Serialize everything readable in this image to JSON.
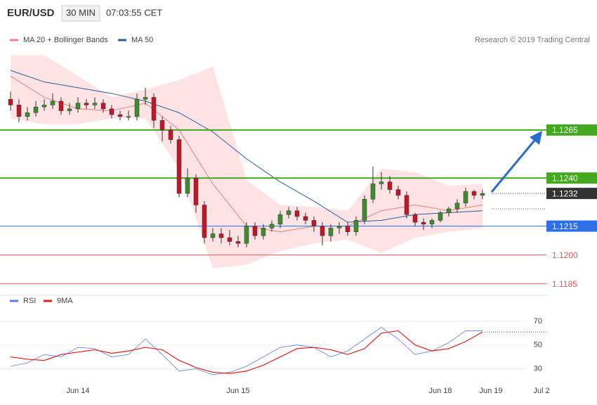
{
  "chart_data": [
    {
      "type": "candlestick",
      "title": "EUR/USD",
      "timeframe": "30 MIN",
      "time": "07:03:55 CET",
      "credit": "Research © 2019 Trading Central",
      "categories": [
        null,
        null,
        null,
        null,
        null,
        null,
        null,
        null,
        "Jun 14",
        null,
        null,
        null,
        null,
        null,
        null,
        null,
        null,
        null,
        null,
        null,
        null,
        null,
        null,
        null,
        null,
        null,
        null,
        "Jun 15",
        null,
        null,
        null,
        null,
        null,
        null,
        null,
        null,
        null,
        null,
        null,
        null,
        null,
        null,
        null,
        null,
        null,
        null,
        null,
        null,
        null,
        null,
        null,
        "Jun 18",
        null,
        null,
        null,
        null,
        null,
        "Jun 19",
        null,
        null,
        null,
        null,
        null,
        "Jul 2"
      ],
      "open": [
        1.1281,
        1.1278,
        1.1272,
        1.1274,
        1.1277,
        1.1278,
        1.128,
        1.1275,
        1.1276,
        1.1279,
        1.1278,
        1.1279,
        1.1276,
        1.1273,
        1.1272,
        1.1272,
        1.1281,
        1.1282,
        1.127,
        1.1265,
        1.126,
        1.1232,
        1.124,
        1.1226,
        1.1209,
        1.1211,
        1.1209,
        1.1207,
        1.1206,
        1.1215,
        1.121,
        1.1214,
        1.1216,
        1.1221,
        1.1223,
        1.122,
        1.1218,
        1.1215,
        1.121,
        1.1214,
        1.1215,
        1.1212,
        1.1218,
        1.1229,
        1.1237,
        1.1238,
        1.1234,
        1.1231,
        1.1221,
        1.1217,
        1.1216,
        1.1218,
        1.1222,
        1.1224,
        1.1227,
        1.1233,
        1.1231,
        null,
        null,
        null,
        null,
        null,
        null,
        null
      ],
      "high": [
        1.1285,
        1.1281,
        1.1277,
        1.128,
        1.1281,
        1.1284,
        1.1282,
        1.1279,
        1.1282,
        1.1281,
        1.1282,
        1.1281,
        1.1278,
        1.1275,
        1.1275,
        1.1284,
        1.1287,
        1.1284,
        1.1272,
        1.1267,
        1.1262,
        1.1245,
        1.1242,
        1.1228,
        1.1214,
        1.1214,
        1.1213,
        1.121,
        1.1217,
        1.1217,
        1.1216,
        1.1218,
        1.1223,
        1.1225,
        1.1225,
        1.1222,
        1.122,
        1.1217,
        1.1216,
        1.1217,
        1.1217,
        1.122,
        1.1231,
        1.1246,
        1.1243,
        1.1241,
        1.1236,
        1.1233,
        1.1222,
        1.1219,
        1.1219,
        1.1223,
        1.1225,
        1.1229,
        1.1235,
        1.1234,
        1.1234,
        null,
        null,
        null,
        null,
        null,
        null,
        null
      ],
      "low": [
        1.1275,
        1.1269,
        1.127,
        1.1272,
        1.1275,
        1.1276,
        1.1273,
        1.1273,
        1.1274,
        1.1276,
        1.1276,
        1.1274,
        1.1271,
        1.127,
        1.127,
        1.127,
        1.1278,
        1.1266,
        1.1259,
        1.1258,
        1.123,
        1.123,
        1.1222,
        1.1206,
        1.1207,
        1.1206,
        1.1205,
        1.1204,
        1.1204,
        1.1208,
        1.1208,
        1.1212,
        1.1214,
        1.1219,
        1.1218,
        1.1216,
        1.1212,
        1.1205,
        1.1207,
        1.1211,
        1.121,
        1.121,
        1.1216,
        1.1227,
        1.1234,
        1.1232,
        1.1229,
        1.1219,
        1.1215,
        1.1213,
        1.1214,
        1.1217,
        1.122,
        1.1222,
        1.1225,
        1.1229,
        1.1229,
        null,
        null,
        null,
        null,
        null,
        null,
        null
      ],
      "close": [
        1.1278,
        1.1272,
        1.1274,
        1.1277,
        1.1278,
        1.128,
        1.1275,
        1.1276,
        1.1279,
        1.1278,
        1.1279,
        1.1276,
        1.1273,
        1.1272,
        1.1272,
        1.1281,
        1.1282,
        1.127,
        1.1265,
        1.126,
        1.1232,
        1.124,
        1.1226,
        1.1209,
        1.1211,
        1.1209,
        1.1207,
        1.1206,
        1.1215,
        1.121,
        1.1214,
        1.1216,
        1.1221,
        1.1223,
        1.122,
        1.1218,
        1.1215,
        1.121,
        1.1214,
        1.1215,
        1.1212,
        1.1218,
        1.1229,
        1.1237,
        1.1238,
        1.1234,
        1.1231,
        1.1221,
        1.1217,
        1.1216,
        1.1218,
        1.1222,
        1.1224,
        1.1227,
        1.1233,
        1.1231,
        1.1232,
        null,
        null,
        null,
        null,
        null,
        null,
        null
      ],
      "up_color": "#3c8d2f",
      "down_color": "#c0162a",
      "ylim": [
        1.1179,
        1.1318
      ],
      "band": {
        "name": "MA 20 + Bollinger Bands",
        "color": "#f08080",
        "fill": "#fde3e3",
        "x": [
          0,
          4,
          8,
          12,
          16,
          20,
          24,
          28,
          32,
          36,
          40,
          44,
          48,
          52,
          56
        ],
        "upper": [
          1.1304,
          1.1304,
          1.1293,
          1.1282,
          1.1286,
          1.1291,
          1.1298,
          1.1239,
          1.1226,
          1.1225,
          1.1223,
          1.1245,
          1.1243,
          1.1236,
          1.1237
        ],
        "middle": [
          1.1293,
          1.1282,
          1.1276,
          1.1275,
          1.1279,
          1.1265,
          1.1237,
          1.1215,
          1.1212,
          1.1215,
          1.1215,
          1.1223,
          1.1226,
          1.1223,
          1.1226
        ],
        "lower": [
          1.1271,
          1.1268,
          1.1268,
          1.1271,
          1.1271,
          1.1245,
          1.1193,
          1.1195,
          1.1202,
          1.1206,
          1.1208,
          1.1201,
          1.1209,
          1.1212,
          1.1214
        ]
      },
      "ma50": {
        "name": "MA 50",
        "color": "#2b5d9b",
        "x": [
          0,
          4,
          8,
          12,
          16,
          20,
          24,
          28,
          32,
          36,
          40,
          44,
          48,
          52,
          56
        ],
        "values": [
          1.1296,
          1.129,
          1.1287,
          1.1284,
          1.128,
          1.1274,
          1.1264,
          1.125,
          1.1238,
          1.1228,
          1.1217,
          1.1218,
          1.1221,
          1.1222,
          1.1223
        ]
      },
      "levels": [
        {
          "value": 1.1265,
          "label": "1.1265",
          "color": "#43a81f",
          "style": "solid"
        },
        {
          "value": 1.124,
          "label": "1.1240",
          "color": "#43a81f",
          "style": "solid"
        },
        {
          "value": 1.1232,
          "label": "1.1232",
          "color": "#333333",
          "style": "dotted"
        },
        {
          "value": 1.1224,
          "color": "#555555",
          "style": "dotted"
        },
        {
          "value": 1.1215,
          "label": "1.1215",
          "color": "#2e6ee6",
          "style": "solid"
        },
        {
          "value": 1.12,
          "label": "1.1200",
          "color": "#e05a5a",
          "style": "thin"
        },
        {
          "value": 1.1185,
          "label": "1.1185",
          "color": "#e05a5a",
          "style": "thin"
        }
      ]
    },
    {
      "type": "line",
      "ylim": [
        16,
        86
      ],
      "yticks": [
        30,
        50,
        70
      ],
      "reference": 61,
      "series": [
        {
          "name": "RSI",
          "color": "#5b7fe0",
          "x": [
            0,
            2,
            4,
            6,
            8,
            10,
            12,
            14,
            16,
            18,
            20,
            22,
            24,
            26,
            28,
            30,
            32,
            34,
            36,
            38,
            40,
            42,
            44,
            46,
            48,
            50,
            52,
            54,
            56
          ],
          "values": [
            32,
            35,
            42,
            40,
            48,
            47,
            40,
            42,
            55,
            42,
            28,
            30,
            25,
            27,
            32,
            40,
            48,
            50,
            48,
            40,
            45,
            55,
            65,
            55,
            42,
            45,
            52,
            62,
            62
          ]
        },
        {
          "name": "9MA",
          "color": "#e0201e",
          "x": [
            0,
            2,
            4,
            6,
            8,
            10,
            12,
            14,
            16,
            18,
            20,
            22,
            24,
            26,
            28,
            30,
            32,
            34,
            36,
            38,
            40,
            42,
            44,
            46,
            48,
            50,
            52,
            54,
            56
          ],
          "values": [
            40,
            38,
            37,
            42,
            44,
            46,
            43,
            45,
            48,
            46,
            37,
            31,
            27,
            26,
            28,
            33,
            40,
            47,
            48,
            46,
            42,
            47,
            60,
            62,
            50,
            45,
            47,
            53,
            61
          ]
        }
      ]
    }
  ]
}
